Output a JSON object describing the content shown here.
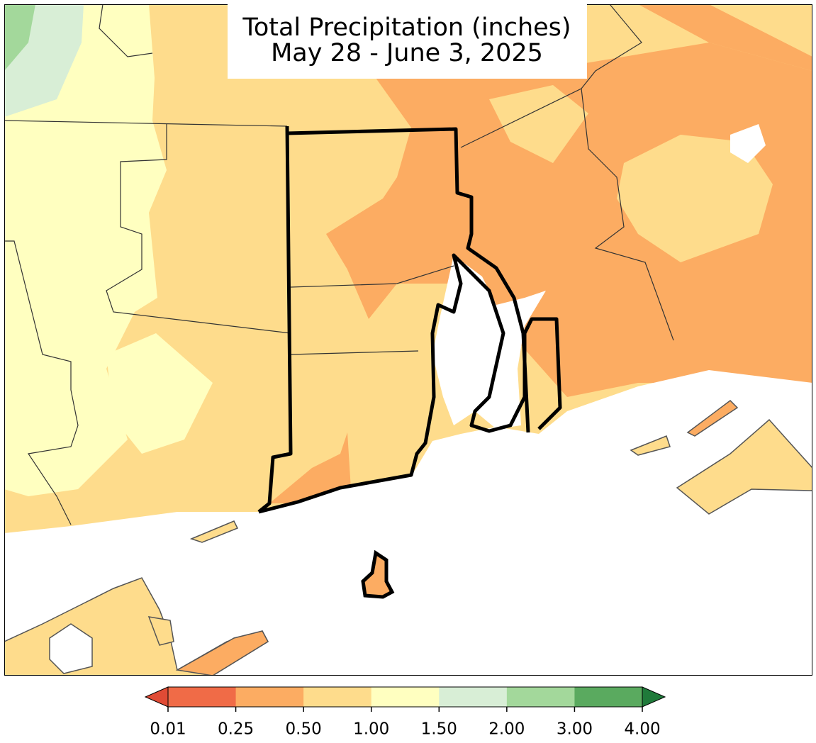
{
  "map": {
    "title": "Total Precipitation (inches)",
    "subtitle": "May 28 - June 3, 2025",
    "colorbar": {
      "ticks": [
        0.01,
        0.25,
        {
          "value": 0.5,
          "label": "0.50"
        },
        {
          "value": 1,
          "label": "1.00"
        },
        {
          "value": 1.5,
          "label": "1.50"
        },
        {
          "value": 2,
          "label": "2.00"
        },
        {
          "value": 3,
          "label": "3.00"
        },
        {
          "value": 4,
          "label": "4.00"
        }
      ],
      "colors": [
        "#f06b47",
        "#fcac62",
        "#fedc8c",
        "#ffffc0",
        "#d8eed6",
        "#a3d89b",
        "#5aaa5f"
      ],
      "extend": "both",
      "under_color": "#e04b35",
      "over_color": "#1f7a3a"
    }
  }
}
